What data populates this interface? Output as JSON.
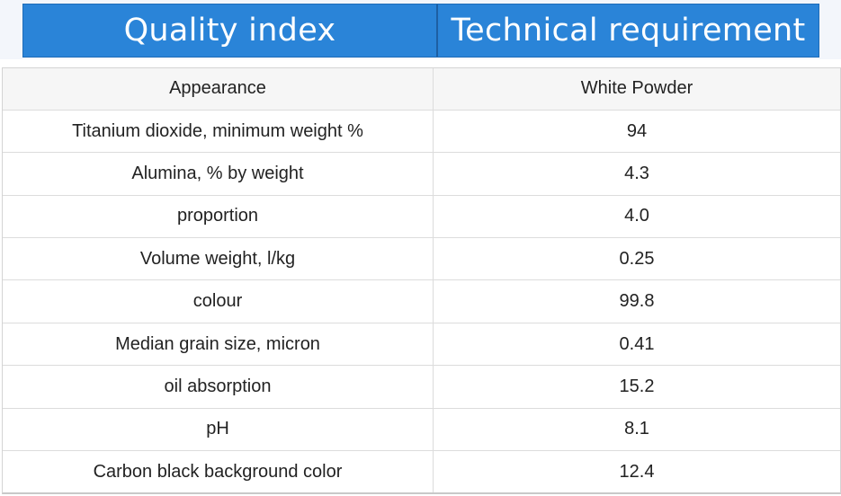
{
  "header": {
    "col1": "Quality index",
    "col2": "Technical requirement"
  },
  "rows": [
    {
      "name": "Appearance",
      "value": "White Powder"
    },
    {
      "name": "Titanium dioxide, minimum weight %",
      "value": "94"
    },
    {
      "name": "Alumina, % by weight",
      "value": "4.3"
    },
    {
      "name": "proportion",
      "value": "4.0"
    },
    {
      "name": "Volume weight, l/kg",
      "value": "0.25"
    },
    {
      "name": "colour",
      "value": "99.8"
    },
    {
      "name": "Median grain size, micron",
      "value": "0.41"
    },
    {
      "name": "oil absorption",
      "value": "15.2"
    },
    {
      "name": "pH",
      "value": "8.1"
    },
    {
      "name": "Carbon black background color",
      "value": "12.4"
    }
  ],
  "colors": {
    "header_bg": "#2a84d8",
    "header_text": "#ffffff",
    "first_row_bg": "#f6f6f6",
    "grid": "#dcdcdc"
  }
}
